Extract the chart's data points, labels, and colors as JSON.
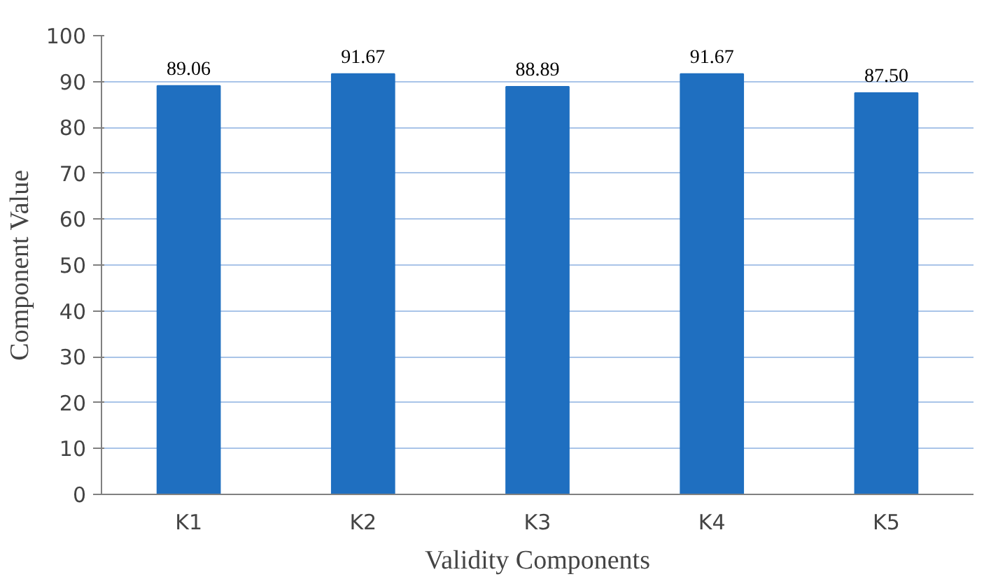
{
  "chart_data": {
    "type": "bar",
    "xlabel": "Validity Components",
    "ylabel": "Component Value",
    "categories": [
      "K1",
      "K2",
      "K3",
      "K4",
      "K5"
    ],
    "values": [
      89.06,
      91.67,
      88.89,
      91.67,
      87.5
    ],
    "value_labels": [
      "89.06",
      "91.67",
      "88.89",
      "91.67",
      "87.50"
    ],
    "color": "#1f6fc0",
    "ylim": [
      0,
      100
    ],
    "yticks": [
      0,
      10,
      20,
      30,
      40,
      50,
      60,
      70,
      80,
      90,
      100
    ],
    "grid": "y"
  }
}
